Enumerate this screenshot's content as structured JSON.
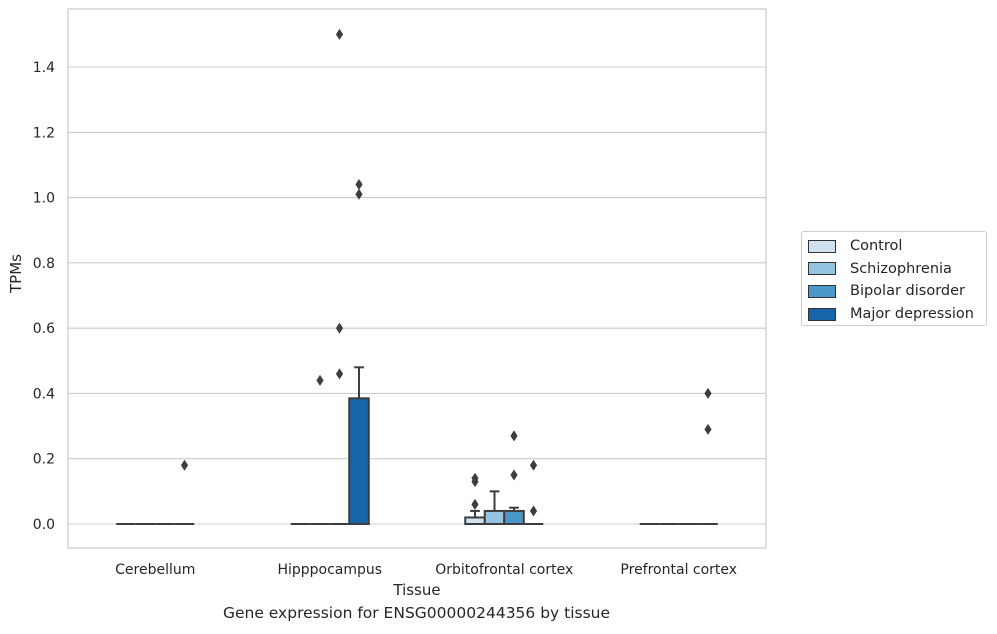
{
  "caption": "Gene expression for ENSG00000244356 by tissue",
  "chart_data": {
    "type": "box",
    "xlabel": "Tissue",
    "ylabel": "TPMs",
    "ylim": [
      -0.07,
      1.58
    ],
    "yticks": [
      0.0,
      0.2,
      0.4,
      0.6,
      0.8,
      1.0,
      1.2,
      1.4
    ],
    "ytick_labels": [
      "0.0",
      "0.2",
      "0.4",
      "0.6",
      "0.8",
      "1.0",
      "1.2",
      "1.4"
    ],
    "grid": true,
    "legend_position": "right",
    "categories": [
      "Cerebellum",
      "Hipppocampus",
      "Orbitofrontal cortex",
      "Prefrontal cortex"
    ],
    "series": [
      {
        "name": "Control",
        "color": "#d0e1f2",
        "boxes": [
          {
            "q1": 0,
            "median": 0,
            "q3": 0,
            "whisker_low": 0,
            "whisker_high": 0,
            "outliers": []
          },
          {
            "q1": 0,
            "median": 0,
            "q3": 0,
            "whisker_low": 0,
            "whisker_high": 0,
            "outliers": []
          },
          {
            "q1": 0,
            "median": 0,
            "q3": 0.02,
            "whisker_low": 0,
            "whisker_high": 0.04,
            "outliers": [
              0.06,
              0.13,
              0.14
            ]
          },
          {
            "q1": 0,
            "median": 0,
            "q3": 0,
            "whisker_low": 0,
            "whisker_high": 0,
            "outliers": []
          }
        ]
      },
      {
        "name": "Schizophrenia",
        "color": "#94c4df",
        "boxes": [
          {
            "q1": 0,
            "median": 0,
            "q3": 0,
            "whisker_low": 0,
            "whisker_high": 0,
            "outliers": []
          },
          {
            "q1": 0,
            "median": 0,
            "q3": 0,
            "whisker_low": 0,
            "whisker_high": 0,
            "outliers": [
              0.44
            ]
          },
          {
            "q1": 0,
            "median": 0,
            "q3": 0.04,
            "whisker_low": 0,
            "whisker_high": 0.1,
            "outliers": []
          },
          {
            "q1": 0,
            "median": 0,
            "q3": 0,
            "whisker_low": 0,
            "whisker_high": 0,
            "outliers": []
          }
        ]
      },
      {
        "name": "Bipolar disorder",
        "color": "#4a98c9",
        "boxes": [
          {
            "q1": 0,
            "median": 0,
            "q3": 0,
            "whisker_low": 0,
            "whisker_high": 0,
            "outliers": []
          },
          {
            "q1": 0,
            "median": 0,
            "q3": 0,
            "whisker_low": 0,
            "whisker_high": 0,
            "outliers": [
              0.46,
              0.6,
              1.5
            ]
          },
          {
            "q1": 0,
            "median": 0,
            "q3": 0.04,
            "whisker_low": 0,
            "whisker_high": 0.05,
            "outliers": [
              0.15,
              0.27
            ]
          },
          {
            "q1": 0,
            "median": 0,
            "q3": 0,
            "whisker_low": 0,
            "whisker_high": 0,
            "outliers": []
          }
        ]
      },
      {
        "name": "Major depression",
        "color": "#1764ab",
        "boxes": [
          {
            "q1": 0,
            "median": 0,
            "q3": 0,
            "whisker_low": 0,
            "whisker_high": 0,
            "outliers": [
              0.18
            ]
          },
          {
            "q1": 0,
            "median": 0,
            "q3": 0.385,
            "whisker_low": 0,
            "whisker_high": 0.48,
            "outliers": [
              1.01,
              1.04
            ]
          },
          {
            "q1": 0,
            "median": 0,
            "q3": 0,
            "whisker_low": 0,
            "whisker_high": 0,
            "outliers": [
              0.04,
              0.18
            ]
          },
          {
            "q1": 0,
            "median": 0,
            "q3": 0,
            "whisker_low": 0,
            "whisker_high": 0,
            "outliers": [
              0.29,
              0.4
            ]
          }
        ]
      }
    ]
  }
}
